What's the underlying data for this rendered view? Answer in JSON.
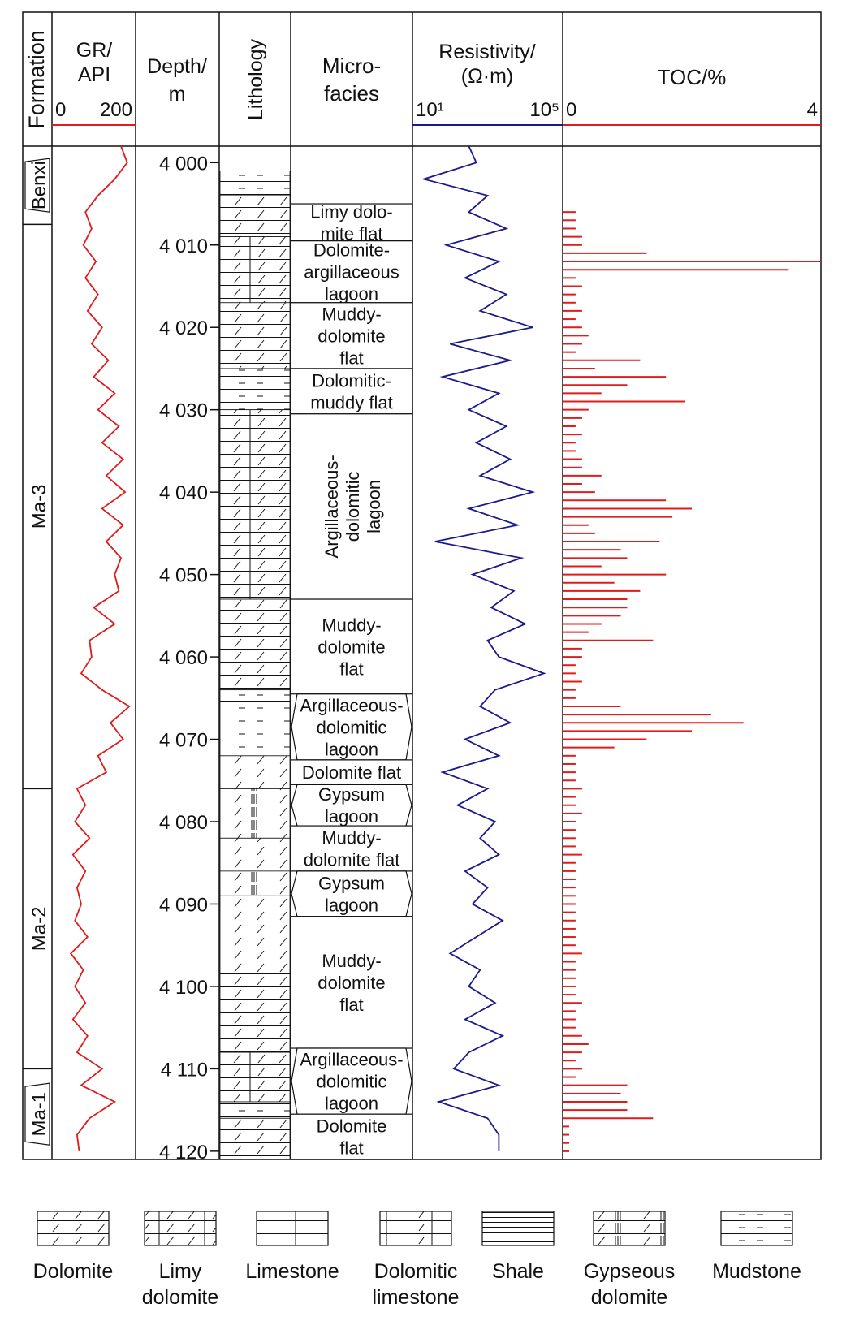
{
  "headers": {
    "formation": "Formation",
    "gr_line1": "GR/",
    "gr_line2": "API",
    "gr_min": "0",
    "gr_max": "200",
    "depth_line1": "Depth/",
    "depth_line2": "m",
    "lithology": "Lithology",
    "microfacies_line1": "Micro-",
    "microfacies_line2": "facies",
    "res_line1": "Resistivity/",
    "res_line2": "(Ω·m)",
    "res_min": "10¹",
    "res_max": "10⁵",
    "toc": "TOC/%",
    "toc_min": "0",
    "toc_max": "4"
  },
  "colors": {
    "gr_curve": "#e01b1b",
    "resistivity_curve": "#1a1a8c",
    "toc_bars": "#e01b1b",
    "frame": "#111111"
  },
  "chart_data": {
    "type": "line",
    "depth_axis": {
      "range": [
        3998,
        4121
      ],
      "ticks": [
        4000,
        4010,
        4020,
        4030,
        4040,
        4050,
        4060,
        4070,
        4080,
        4090,
        4100,
        4110,
        4120
      ],
      "tick_labels": [
        "4 000",
        "4 010",
        "4 020",
        "4 030",
        "4 040",
        "4 050",
        "4 060",
        "4 070",
        "4 080",
        "4 090",
        "4 100",
        "4 110",
        "4 120"
      ]
    },
    "formations": [
      {
        "name": "Benxi",
        "top": 3998,
        "base": 4007.5
      },
      {
        "name": "Ma-3",
        "top": 4007.5,
        "base": 4076
      },
      {
        "name": "Ma-2",
        "top": 4076,
        "base": 4110
      },
      {
        "name": "Ma-1",
        "top": 4110,
        "base": 4121
      }
    ],
    "microfacies": [
      {
        "lines": [
          "Limy dolo-",
          "mite flat"
        ],
        "top": 4005,
        "base": 4009.5,
        "shape": "rect"
      },
      {
        "lines": [
          "Dolomite-",
          "argillaceous",
          "lagoon"
        ],
        "top": 4009.5,
        "base": 4017,
        "shape": "rect"
      },
      {
        "lines": [
          "Muddy-",
          "dolomite",
          "flat"
        ],
        "top": 4017,
        "base": 4025,
        "shape": "rect"
      },
      {
        "lines": [
          "Dolomitic-",
          "muddy flat"
        ],
        "top": 4025,
        "base": 4030.5,
        "shape": "rect"
      },
      {
        "lines": [
          "Argillaceous-",
          "dolomitic",
          "lagoon"
        ],
        "top": 4030.5,
        "base": 4053,
        "shape": "rect",
        "vertical": true
      },
      {
        "lines": [
          "Muddy-",
          "dolomite",
          "flat"
        ],
        "top": 4053,
        "base": 4064.5,
        "shape": "rect"
      },
      {
        "lines": [
          "Argillaceous-",
          "dolomitic",
          "lagoon"
        ],
        "top": 4064.5,
        "base": 4072.5,
        "shape": "hex"
      },
      {
        "lines": [
          "Dolomite flat"
        ],
        "top": 4072.5,
        "base": 4075.5,
        "shape": "rect"
      },
      {
        "lines": [
          "Gypsum",
          "lagoon"
        ],
        "top": 4075.5,
        "base": 4080.5,
        "shape": "hex"
      },
      {
        "lines": [
          "Muddy-",
          "dolomite flat"
        ],
        "top": 4080.5,
        "base": 4086,
        "shape": "rect"
      },
      {
        "lines": [
          "Gypsum",
          "lagoon"
        ],
        "top": 4086,
        "base": 4091.5,
        "shape": "hex"
      },
      {
        "lines": [
          "Muddy-",
          "dolomite",
          "flat"
        ],
        "top": 4091.5,
        "base": 4107.5,
        "shape": "rect"
      },
      {
        "lines": [
          "Argillaceous-",
          "dolomitic",
          "lagoon"
        ],
        "top": 4107.5,
        "base": 4115.5,
        "shape": "hex"
      },
      {
        "lines": [
          "Dolomite",
          "flat"
        ],
        "top": 4115.5,
        "base": 4121,
        "shape": "rect"
      }
    ],
    "lithology_intervals": [
      {
        "top": 4001,
        "base": 4004,
        "type": "mudstone"
      },
      {
        "top": 4004,
        "base": 4009,
        "type": "dolomite"
      },
      {
        "top": 4009,
        "base": 4017,
        "type": "limy_dolomite"
      },
      {
        "top": 4017,
        "base": 4025,
        "type": "dolomite"
      },
      {
        "top": 4025,
        "base": 4030,
        "type": "mudstone"
      },
      {
        "top": 4030,
        "base": 4053,
        "type": "limy_dolomite"
      },
      {
        "top": 4053,
        "base": 4064,
        "type": "dolomite"
      },
      {
        "top": 4064,
        "base": 4072,
        "type": "mudstone"
      },
      {
        "top": 4072,
        "base": 4076,
        "type": "dolomite"
      },
      {
        "top": 4076,
        "base": 4082,
        "type": "gypseous_dolomite"
      },
      {
        "top": 4082,
        "base": 4086,
        "type": "dolomite"
      },
      {
        "top": 4086,
        "base": 4089,
        "type": "gypseous_dolomite"
      },
      {
        "top": 4089,
        "base": 4108,
        "type": "dolomite"
      },
      {
        "top": 4108,
        "base": 4114,
        "type": "limy_dolomite"
      },
      {
        "top": 4114,
        "base": 4116,
        "type": "mudstone"
      },
      {
        "top": 4116,
        "base": 4121,
        "type": "dolomite"
      }
    ],
    "gr_curve": {
      "unit": "API",
      "range": [
        0,
        200
      ],
      "depth": [
        3998,
        4000,
        4002,
        4004,
        4006,
        4008,
        4010,
        4012,
        4014,
        4016,
        4018,
        4020,
        4022,
        4024,
        4026,
        4028,
        4030,
        4032,
        4034,
        4036,
        4038,
        4040,
        4042,
        4044,
        4046,
        4048,
        4050,
        4052,
        4054,
        4056,
        4058,
        4060,
        4062,
        4064,
        4066,
        4068,
        4070,
        4072,
        4074,
        4076,
        4078,
        4080,
        4082,
        4084,
        4086,
        4088,
        4090,
        4092,
        4094,
        4096,
        4098,
        4100,
        4102,
        4104,
        4106,
        4108,
        4110,
        4112,
        4114,
        4116,
        4118,
        4120
      ],
      "values": [
        165,
        180,
        150,
        110,
        80,
        95,
        75,
        105,
        80,
        110,
        85,
        120,
        95,
        135,
        100,
        150,
        110,
        160,
        120,
        170,
        130,
        175,
        120,
        170,
        130,
        165,
        150,
        160,
        100,
        150,
        90,
        95,
        70,
        120,
        185,
        140,
        170,
        110,
        130,
        60,
        80,
        55,
        90,
        50,
        80,
        60,
        70,
        55,
        85,
        45,
        75,
        55,
        80,
        50,
        85,
        60,
        120,
        70,
        150,
        90,
        60,
        65
      ]
    },
    "resistivity_curve": {
      "unit": "Ω·m",
      "range_log10": [
        1,
        5
      ],
      "depth": [
        3998,
        4000,
        4002,
        4004,
        4006,
        4008,
        4010,
        4012,
        4014,
        4016,
        4018,
        4020,
        4022,
        4024,
        4026,
        4028,
        4030,
        4032,
        4034,
        4036,
        4038,
        4040,
        4042,
        4044,
        4046,
        4048,
        4050,
        4052,
        4054,
        4056,
        4058,
        4060,
        4062,
        4064,
        4066,
        4068,
        4070,
        4072,
        4074,
        4076,
        4078,
        4080,
        4082,
        4084,
        4086,
        4088,
        4090,
        4092,
        4094,
        4096,
        4098,
        4100,
        4102,
        4104,
        4106,
        4108,
        4110,
        4112,
        4114,
        4116,
        4118,
        4120
      ],
      "log10_values": [
        2.5,
        2.7,
        1.3,
        3.0,
        2.5,
        3.5,
        1.9,
        3.3,
        2.4,
        3.5,
        2.8,
        4.2,
        2.0,
        3.6,
        1.8,
        3.3,
        2.5,
        3.5,
        2.7,
        3.6,
        2.8,
        4.2,
        2.5,
        3.8,
        1.6,
        3.9,
        2.6,
        3.7,
        3.1,
        4.0,
        3.0,
        3.3,
        4.5,
        3.2,
        2.8,
        3.6,
        2.4,
        3.3,
        1.8,
        3.0,
        2.2,
        3.2,
        2.8,
        3.3,
        2.4,
        3.0,
        2.6,
        3.4,
        2.7,
        2.0,
        2.8,
        2.5,
        3.2,
        2.4,
        3.4,
        2.5,
        2.1,
        3.3,
        1.7,
        3.0,
        3.3,
        3.3
      ]
    },
    "toc_bars": {
      "unit": "%",
      "range": [
        0,
        4
      ],
      "depth": [
        4006,
        4007,
        4008,
        4009,
        4010,
        4011,
        4012,
        4013,
        4014,
        4015,
        4016,
        4017,
        4018,
        4019,
        4020,
        4021,
        4022,
        4023,
        4024,
        4025,
        4026,
        4027,
        4028,
        4029,
        4030,
        4031,
        4032,
        4033,
        4034,
        4035,
        4036,
        4037,
        4038,
        4039,
        4040,
        4041,
        4042,
        4043,
        4044,
        4045,
        4046,
        4047,
        4048,
        4049,
        4050,
        4051,
        4052,
        4053,
        4054,
        4055,
        4056,
        4057,
        4058,
        4059,
        4060,
        4061,
        4062,
        4063,
        4064,
        4065,
        4066,
        4067,
        4068,
        4069,
        4070,
        4071,
        4072,
        4073,
        4074,
        4075,
        4076,
        4077,
        4078,
        4079,
        4080,
        4081,
        4082,
        4083,
        4084,
        4085,
        4086,
        4087,
        4088,
        4089,
        4090,
        4091,
        4092,
        4093,
        4094,
        4095,
        4096,
        4097,
        4098,
        4099,
        4100,
        4101,
        4102,
        4103,
        4104,
        4105,
        4106,
        4107,
        4108,
        4109,
        4110,
        4111,
        4112,
        4113,
        4114,
        4115,
        4116,
        4117,
        4118,
        4119,
        4120
      ],
      "values": [
        0.2,
        0.2,
        0.2,
        0.3,
        0.3,
        1.3,
        4.0,
        3.5,
        0.2,
        0.3,
        0.2,
        0.2,
        0.3,
        0.2,
        0.3,
        0.4,
        0.3,
        0.2,
        1.2,
        0.5,
        1.6,
        1.0,
        0.6,
        1.9,
        0.4,
        0.3,
        0.2,
        0.3,
        0.2,
        0.2,
        0.3,
        0.3,
        0.6,
        0.3,
        0.5,
        1.6,
        2.0,
        1.7,
        0.4,
        0.5,
        1.5,
        0.9,
        1.0,
        0.6,
        1.6,
        0.8,
        1.2,
        1.0,
        1.0,
        0.9,
        0.6,
        0.4,
        1.4,
        0.3,
        0.3,
        0.2,
        0.2,
        0.3,
        0.2,
        0.2,
        0.9,
        2.3,
        2.8,
        2.0,
        1.3,
        0.8,
        0.2,
        0.2,
        0.2,
        0.2,
        0.3,
        0.2,
        0.2,
        0.3,
        0.2,
        0.2,
        0.2,
        0.2,
        0.3,
        0.2,
        0.2,
        0.2,
        0.2,
        0.2,
        0.2,
        0.2,
        0.2,
        0.2,
        0.2,
        0.2,
        0.3,
        0.2,
        0.2,
        0.2,
        0.2,
        0.2,
        0.3,
        0.2,
        0.2,
        0.2,
        0.3,
        0.4,
        0.3,
        0.2,
        0.3,
        0.2,
        1.0,
        0.9,
        1.0,
        1.0,
        1.4,
        0.1,
        0.1,
        0.1,
        0.1
      ]
    },
    "legend": [
      {
        "type": "dolomite",
        "lines": [
          "Dolomite"
        ]
      },
      {
        "type": "limy_dolomite",
        "lines": [
          "Limy",
          "dolomite"
        ]
      },
      {
        "type": "limestone",
        "lines": [
          "Limestone"
        ]
      },
      {
        "type": "dolomitic_limestone",
        "lines": [
          "Dolomitic",
          "limestone"
        ]
      },
      {
        "type": "shale",
        "lines": [
          "Shale"
        ]
      },
      {
        "type": "gypseous_dolomite",
        "lines": [
          "Gypseous",
          "dolomite"
        ]
      },
      {
        "type": "mudstone",
        "lines": [
          "Mudstone"
        ]
      }
    ]
  }
}
